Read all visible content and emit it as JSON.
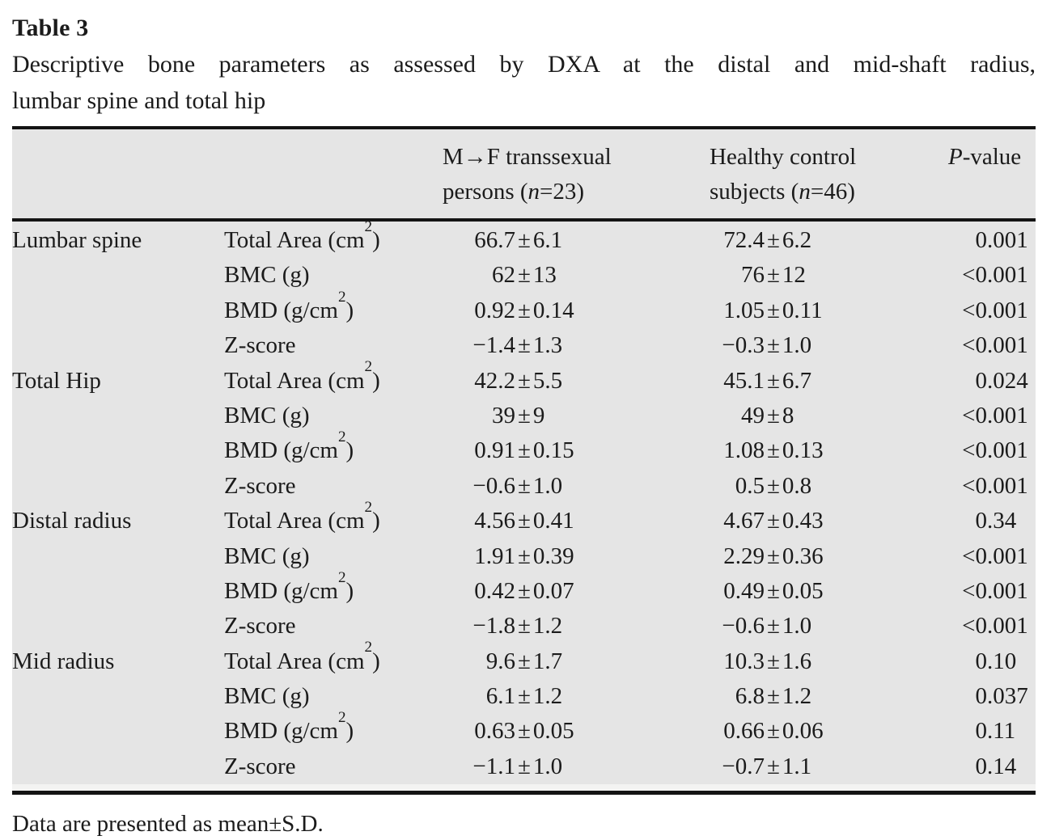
{
  "title": "Table 3",
  "caption_lines": [
    "Descriptive bone parameters as assessed by DXA at the distal and mid-shaft radius,",
    "lumbar spine and total hip"
  ],
  "colors": {
    "table_background": "#e5e5e5",
    "rule": "#141414",
    "text": "#1b1b1b",
    "page_background": "#ffffff"
  },
  "table": {
    "header": {
      "group1_line1": "M→F transsexual",
      "group1_line2": "persons (*n*=23)",
      "group2_line1": "Healthy control",
      "group2_line2": "subjects (*n*=46)",
      "pvalue": "*P*-value"
    },
    "rows": [
      {
        "region": "Lumbar spine",
        "param": "Total Area (cm²)",
        "mtf": "66.7±6.1",
        "control": "72.4±6.2",
        "p": "0.001"
      },
      {
        "region": "",
        "param": "BMC (g)",
        "mtf": "62±13",
        "control": "76±12",
        "p": "<0.001"
      },
      {
        "region": "",
        "param": "BMD (g/cm²)",
        "mtf": "0.92±0.14",
        "control": "1.05±0.11",
        "p": "<0.001"
      },
      {
        "region": "",
        "param": "Z-score",
        "mtf": "−1.4±1.3",
        "control": "−0.3±1.0",
        "p": "<0.001"
      },
      {
        "region": "Total Hip",
        "param": "Total Area (cm²)",
        "mtf": "42.2±5.5",
        "control": "45.1±6.7",
        "p": "0.024"
      },
      {
        "region": "",
        "param": "BMC (g)",
        "mtf": "39±9",
        "control": "49±8",
        "p": "<0.001"
      },
      {
        "region": "",
        "param": "BMD (g/cm²)",
        "mtf": "0.91±0.15",
        "control": "1.08±0.13",
        "p": "<0.001"
      },
      {
        "region": "",
        "param": "Z-score",
        "mtf": "−0.6±1.0",
        "control": "0.5±0.8",
        "p": "<0.001"
      },
      {
        "region": "Distal radius",
        "param": "Total Area (cm²)",
        "mtf": "4.56±0.41",
        "control": "4.67±0.43",
        "p": "0.34"
      },
      {
        "region": "",
        "param": "BMC (g)",
        "mtf": "1.91±0.39",
        "control": "2.29±0.36",
        "p": "<0.001"
      },
      {
        "region": "",
        "param": "BMD (g/cm²)",
        "mtf": "0.42±0.07",
        "control": "0.49±0.05",
        "p": "<0.001"
      },
      {
        "region": "",
        "param": "Z-score",
        "mtf": "−1.8±1.2",
        "control": "−0.6±1.0",
        "p": "<0.001"
      },
      {
        "region": "Mid radius",
        "param": "Total Area (cm²)",
        "mtf": "9.6±1.7",
        "control": "10.3±1.6",
        "p": "0.10"
      },
      {
        "region": "",
        "param": "BMC (g)",
        "mtf": "6.1±1.2",
        "control": "6.8±1.2",
        "p": "0.037"
      },
      {
        "region": "",
        "param": "BMD (g/cm²)",
        "mtf": "0.63±0.05",
        "control": "0.66±0.06",
        "p": "0.11"
      },
      {
        "region": "",
        "param": "Z-score",
        "mtf": "−1.1±1.0",
        "control": "−0.7±1.1",
        "p": "0.14"
      }
    ]
  },
  "footnote": "Data are presented as mean±S.D."
}
